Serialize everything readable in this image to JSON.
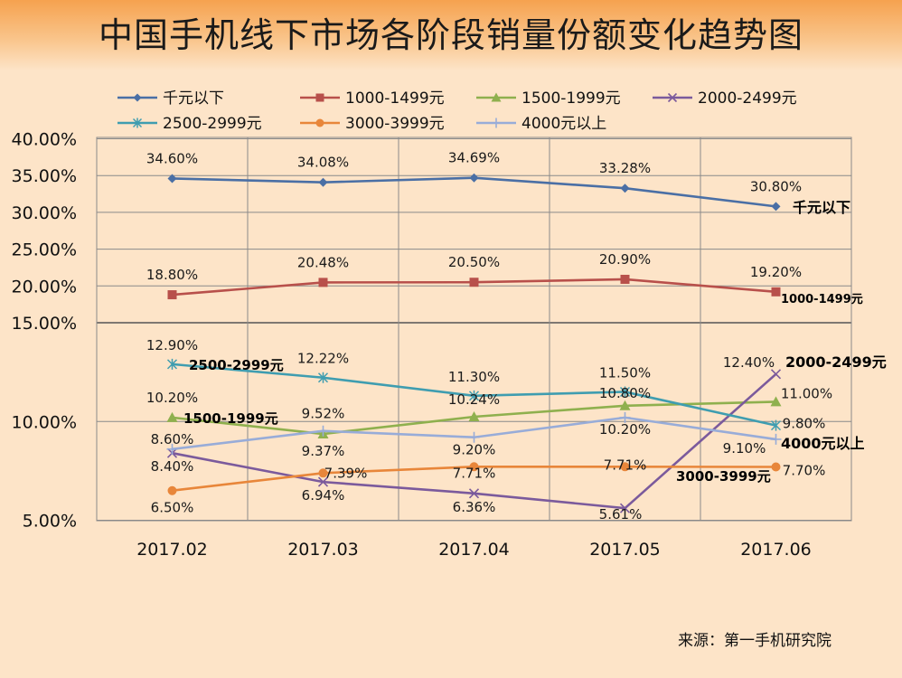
{
  "title": "中国手机线下市场各阶段销量份额变化趋势图",
  "source": "来源：第一手机研究院",
  "chart_data": {
    "type": "line",
    "title": "中国手机线下市场各阶段销量份额变化趋势图",
    "categories": [
      "2017.02",
      "2017.03",
      "2017.04",
      "2017.05",
      "2017.06"
    ],
    "y_ticks": [
      "40.00%",
      "35.00%",
      "30.00%",
      "25.00%",
      "20.00%",
      "15.00%",
      "10.00%",
      "5.00%"
    ],
    "ylim": [
      5,
      40
    ],
    "y_scale": "broken axis: 15%–40% linear upper segment, 5%–15% expanded lower segment",
    "grid": true,
    "legend_position": "top",
    "series": [
      {
        "name": "千元以下",
        "color": "#4a6fa5",
        "marker": "diamond",
        "values": [
          34.6,
          34.08,
          34.69,
          33.28,
          30.8
        ],
        "labels": [
          "34.60%",
          "34.08%",
          "34.69%",
          "33.28%",
          "30.80%"
        ],
        "end_label": "千元以下"
      },
      {
        "name": "1000-1499元",
        "color": "#b8504b",
        "marker": "square",
        "values": [
          18.8,
          20.48,
          20.5,
          20.9,
          19.2
        ],
        "labels": [
          "18.80%",
          "20.48%",
          "20.50%",
          "20.90%",
          "19.20%"
        ],
        "end_label": "1000-1499元"
      },
      {
        "name": "1500-1999元",
        "color": "#8fb04e",
        "marker": "triangle",
        "values": [
          10.2,
          9.37,
          10.24,
          10.8,
          11.0
        ],
        "labels": [
          "10.20%",
          "9.37%",
          "10.24%",
          "10.80%",
          "11.00%"
        ],
        "start_label": "1500-1999元"
      },
      {
        "name": "2000-2499元",
        "color": "#7b5a9c",
        "marker": "x",
        "values": [
          8.4,
          6.94,
          6.36,
          5.61,
          12.4
        ],
        "labels": [
          "8.40%",
          "6.94%",
          "6.36%",
          "5.61%",
          "12.40%"
        ],
        "end_label": "2000-2499元"
      },
      {
        "name": "2500-2999元",
        "color": "#3f9db0",
        "marker": "star",
        "values": [
          12.9,
          12.22,
          11.3,
          11.5,
          9.8
        ],
        "labels": [
          "12.90%",
          "12.22%",
          "11.30%",
          "11.50%",
          "9.80%"
        ],
        "start_label": "2500-2999元"
      },
      {
        "name": "3000-3999元",
        "color": "#e8863a",
        "marker": "circle",
        "values": [
          6.5,
          7.39,
          7.71,
          7.71,
          7.7
        ],
        "labels": [
          "6.50%",
          "7.39%",
          "7.71%",
          "7.71%",
          "7.70%"
        ],
        "end_label": "3000-3999元"
      },
      {
        "name": "4000元以上",
        "color": "#98acd8",
        "marker": "plus",
        "values": [
          8.6,
          9.52,
          9.2,
          10.2,
          9.1
        ],
        "labels": [
          "8.60%",
          "9.52%",
          "9.20%",
          "10.20%",
          "9.10%"
        ],
        "end_label": "4000元以上"
      }
    ]
  }
}
